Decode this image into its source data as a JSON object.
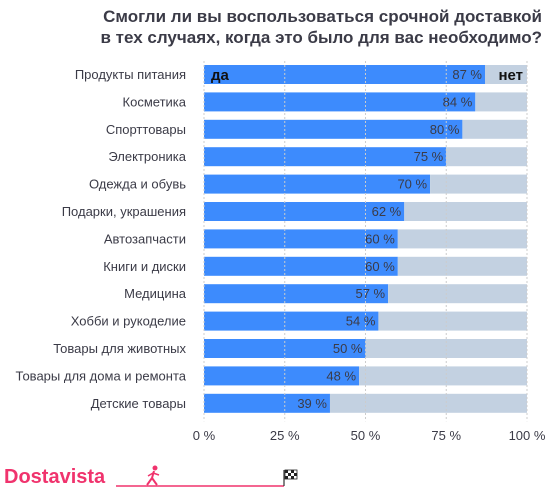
{
  "chart_data": {
    "type": "bar",
    "orientation": "horizontal",
    "stacked": true,
    "title_lines": [
      "Смогли ли вы воспользоваться срочной доставкой",
      "в тех случаях, когда это было для вас необходимо?"
    ],
    "categories": [
      "Продукты питания",
      "Косметика",
      "Спорттовары",
      "Электроника",
      "Одежда и обувь",
      "Подарки, украшения",
      "Автозапчасти",
      "Книги и диски",
      "Медицина",
      "Хобби и рукоделие",
      "Товары для животных",
      "Товары для дома и ремонта",
      "Детские товары"
    ],
    "series": [
      {
        "name": "да",
        "values": [
          87,
          84,
          80,
          75,
          70,
          62,
          60,
          60,
          57,
          54,
          50,
          48,
          39
        ]
      },
      {
        "name": "нет",
        "values": [
          13,
          16,
          20,
          25,
          30,
          38,
          40,
          40,
          43,
          46,
          50,
          52,
          61
        ]
      }
    ],
    "value_labels": [
      "87 %",
      "84 %",
      "80 %",
      "75 %",
      "70 %",
      "62 %",
      "60 %",
      "60 %",
      "57 %",
      "54 %",
      "50 %",
      "48 %",
      "39 %"
    ],
    "x_ticks": [
      "0 %",
      "25 %",
      "50 %",
      "75 %",
      "100 %"
    ],
    "xlim": [
      0,
      100
    ],
    "grid": true,
    "legend_placement": "inside first bar",
    "colors": {
      "yes": "#3d8bfd",
      "no": "#c3d1e1",
      "grid": "#cccccc"
    }
  },
  "brand": {
    "name": "Dostavista",
    "color": "#f0336d"
  }
}
